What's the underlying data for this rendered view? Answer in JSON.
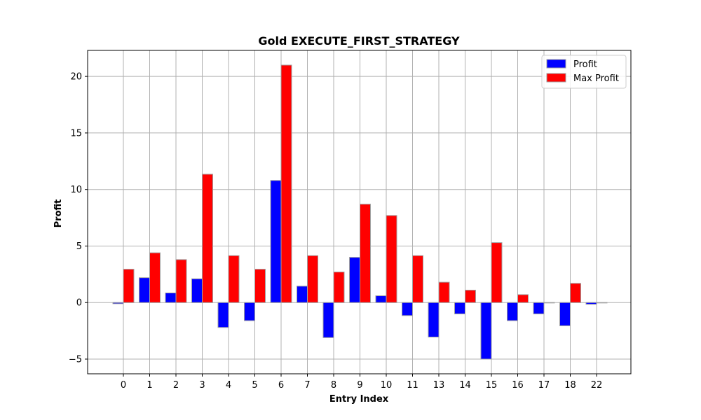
{
  "chart_data": {
    "type": "bar",
    "title": "Gold EXECUTE_FIRST_STRATEGY",
    "xlabel": "Entry Index",
    "ylabel": "Profit",
    "categories": [
      "0",
      "1",
      "2",
      "3",
      "4",
      "5",
      "6",
      "7",
      "8",
      "9",
      "10",
      "11",
      "13",
      "14",
      "15",
      "16",
      "17",
      "18",
      "22"
    ],
    "series": [
      {
        "name": "Profit",
        "color": "#0000ff",
        "values": [
          -0.1,
          2.2,
          0.85,
          2.1,
          -2.2,
          -1.6,
          10.8,
          1.45,
          -3.1,
          4.0,
          0.6,
          -1.15,
          -3.05,
          -1.0,
          -5.0,
          -1.6,
          -1.0,
          -2.05,
          -0.15
        ]
      },
      {
        "name": "Max Profit",
        "color": "#ff0000",
        "values": [
          2.95,
          4.4,
          3.8,
          11.35,
          4.15,
          2.95,
          21.0,
          4.15,
          2.7,
          8.7,
          7.7,
          4.15,
          1.8,
          1.1,
          5.3,
          0.7,
          0.0,
          1.7,
          0.0
        ]
      }
    ],
    "y_ticks": [
      "−5",
      "0",
      "5",
      "10",
      "15",
      "20"
    ],
    "ylim": [
      -6.3,
      22.3
    ],
    "grid": true,
    "legend_position": "top-right",
    "bar_edge_color": "#a0a0a0"
  }
}
